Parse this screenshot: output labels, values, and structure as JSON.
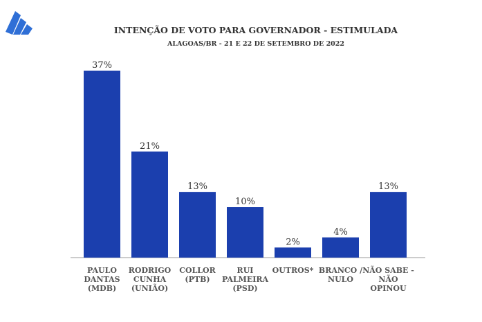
{
  "chart_data": {
    "type": "bar",
    "title": "INTENÇÃO DE VOTO PARA GOVERNADOR - ESTIMULADA",
    "subtitle": "ALAGOAS/BR - 21 E 22 DE SETEMBRO DE 2022",
    "categories": [
      [
        "PAULO",
        "DANTAS",
        "(MDB)"
      ],
      [
        "RODRIGO",
        "CUNHA",
        "(UNIÃO)"
      ],
      [
        "COLLOR",
        "(PTB)"
      ],
      [
        "RUI",
        "PALMEIRA",
        "(PSD)"
      ],
      [
        "OUTROS*"
      ],
      [
        "BRANCO /",
        "NULO"
      ],
      [
        "NÃO SABE  -",
        "NÃO OPINOU"
      ]
    ],
    "values": [
      37,
      21,
      13,
      10,
      2,
      4,
      13
    ],
    "data_labels": [
      "37%",
      "21%",
      "13%",
      "10%",
      "2%",
      "4%",
      "13%"
    ],
    "xlabel": "",
    "ylabel": "",
    "ylim": [
      0,
      37
    ],
    "grid": false,
    "bar_color": "#1b3fae",
    "logo_color": "#2f6fd6"
  }
}
